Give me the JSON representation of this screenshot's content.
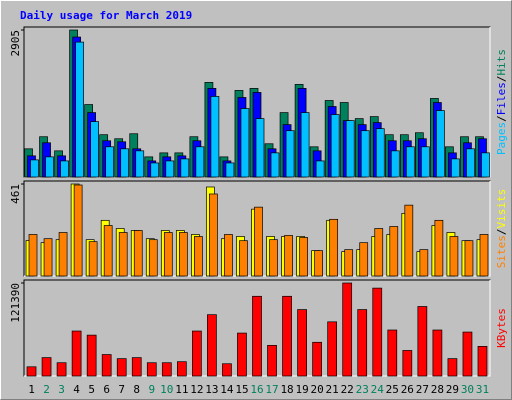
{
  "chart_data": [
    {
      "type": "bar",
      "title": "Daily usage for March 2019",
      "ylim": [
        0,
        2905
      ],
      "yticks": [
        2905
      ],
      "legend_separator": "/",
      "series": [
        {
          "name": "Hits",
          "color": "#00805c",
          "values": [
            557,
            796,
            517,
            2905,
            1432,
            836,
            756,
            855,
            398,
            477,
            477,
            796,
            1870,
            398,
            1711,
            1751,
            657,
            1273,
            1830,
            597,
            1512,
            1472,
            1154,
            1194,
            836,
            836,
            875,
            1552,
            597,
            796,
            796
          ]
        },
        {
          "name": "Files",
          "color": "#0000ff",
          "values": [
            418,
            676,
            418,
            2766,
            1273,
            716,
            696,
            557,
            318,
            398,
            418,
            716,
            1751,
            318,
            1572,
            1671,
            557,
            1035,
            1751,
            517,
            1393,
            1114,
            1035,
            1075,
            716,
            716,
            756,
            1472,
            477,
            676,
            756
          ]
        },
        {
          "name": "Pages",
          "color": "#00c0ff",
          "values": [
            338,
            398,
            318,
            2666,
            1094,
            597,
            557,
            517,
            278,
            318,
            358,
            597,
            1592,
            278,
            1353,
            1154,
            477,
            915,
            1273,
            318,
            1234,
            1114,
            915,
            955,
            517,
            597,
            597,
            1313,
            358,
            557,
            477
          ]
        }
      ]
    },
    {
      "type": "bar",
      "ylim": [
        0,
        461
      ],
      "yticks": [
        461
      ],
      "legend_separator": "/",
      "series": [
        {
          "name": "Visits",
          "color": "#ffff00",
          "values": [
            178,
            167,
            182,
            461,
            182,
            279,
            238,
            228,
            187,
            228,
            228,
            208,
            446,
            187,
            198,
            335,
            198,
            198,
            198,
            127,
            279,
            122,
            132,
            198,
            208,
            314,
            122,
            253,
            218,
            177,
            182
          ]
        },
        {
          "name": "Sites",
          "color": "#ff8000",
          "values": [
            208,
            187,
            218,
            456,
            172,
            253,
            218,
            228,
            182,
            218,
            218,
            198,
            411,
            208,
            177,
            345,
            182,
            203,
            193,
            127,
            284,
            132,
            167,
            238,
            248,
            355,
            132,
            279,
            198,
            177,
            208
          ]
        }
      ]
    },
    {
      "type": "bar",
      "ylim": [
        0,
        121390
      ],
      "yticks": [
        121390
      ],
      "categories": [
        "1",
        "2",
        "3",
        "4",
        "5",
        "6",
        "7",
        "8",
        "9",
        "10",
        "11",
        "12",
        "13",
        "14",
        "15",
        "16",
        "17",
        "18",
        "19",
        "20",
        "21",
        "22",
        "23",
        "24",
        "25",
        "26",
        "27",
        "28",
        "29",
        "30",
        "31"
      ],
      "label_colors": [
        "#000000",
        "#00805c",
        "#00805c",
        "#000000",
        "#000000",
        "#000000",
        "#000000",
        "#000000",
        "#00805c",
        "#00805c",
        "#000000",
        "#000000",
        "#000000",
        "#000000",
        "#000000",
        "#00805c",
        "#00805c",
        "#000000",
        "#000000",
        "#000000",
        "#000000",
        "#000000",
        "#00805c",
        "#00805c",
        "#000000",
        "#000000",
        "#000000",
        "#000000",
        "#000000",
        "#00805c",
        "#00805c"
      ],
      "series": [
        {
          "name": "KBytes",
          "color": "#ff0000",
          "values": [
            12006,
            24012,
            17342,
            58696,
            53360,
            28014,
            22678,
            24012,
            17342,
            17342,
            18676,
            58696,
            80040,
            16008,
            56028,
            104052,
            40020,
            104052,
            86710,
            44022,
            70702,
            121390,
            86710,
            114724,
            60030,
            33350,
            90712,
            60030,
            22678,
            57362,
            38686
          ]
        }
      ]
    }
  ]
}
